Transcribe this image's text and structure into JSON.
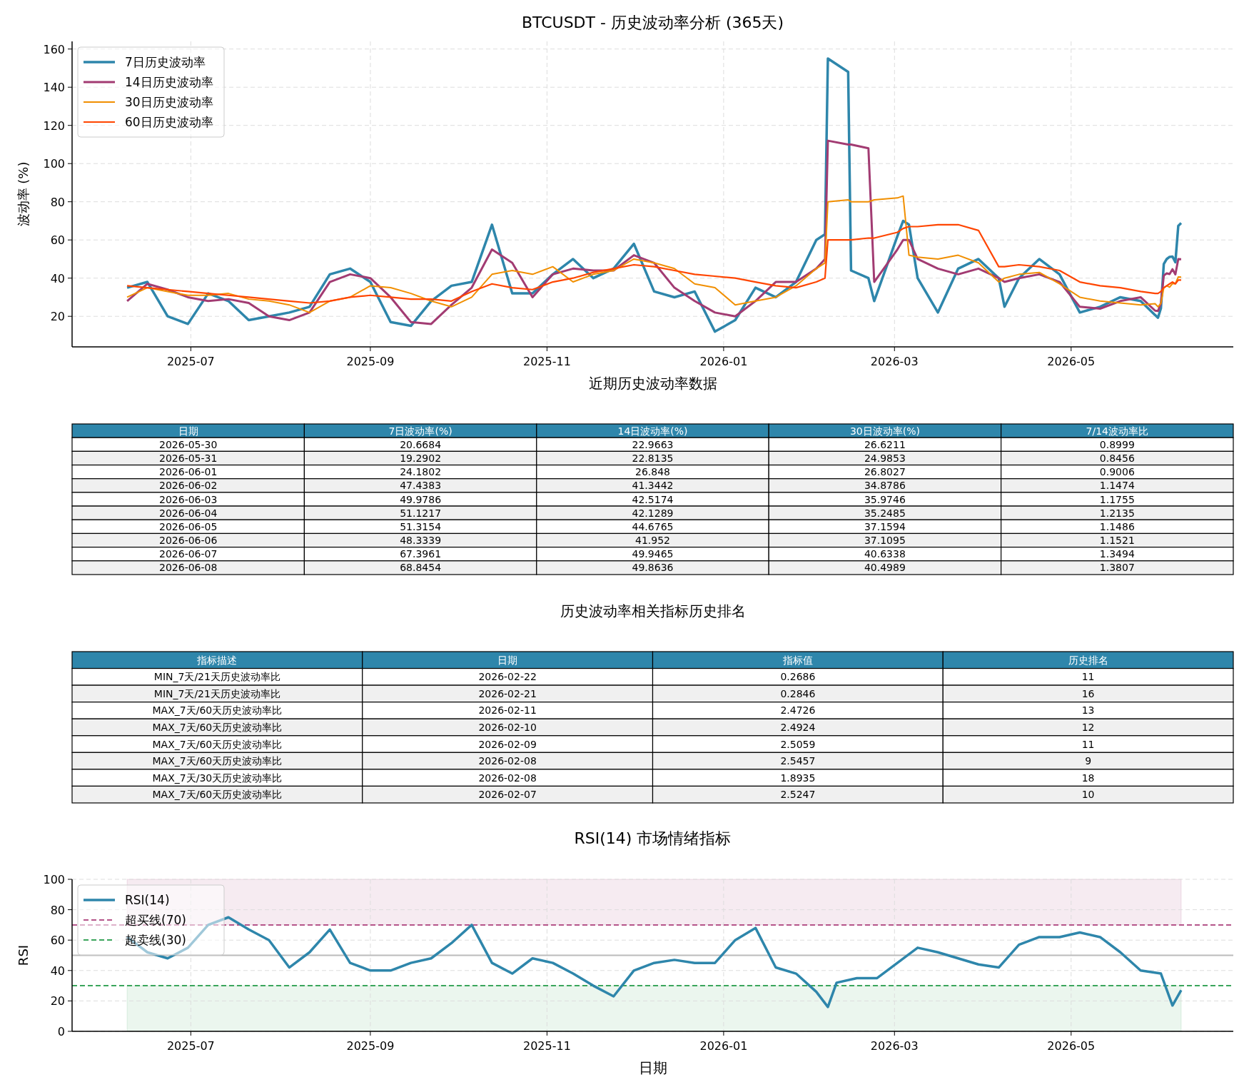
{
  "chart_data": [
    {
      "type": "line",
      "title": "BTCUSDT - 历史波动率分析 (365天)",
      "ylabel": "波动率 (%)",
      "x": [
        "2025-06-09",
        "2025-06-16",
        "2025-06-23",
        "2025-06-30",
        "2025-07-07",
        "2025-07-14",
        "2025-07-21",
        "2025-07-28",
        "2025-08-04",
        "2025-08-11",
        "2025-08-18",
        "2025-08-25",
        "2025-09-01",
        "2025-09-08",
        "2025-09-15",
        "2025-09-22",
        "2025-09-29",
        "2025-10-06",
        "2025-10-13",
        "2025-10-20",
        "2025-10-27",
        "2025-11-03",
        "2025-11-10",
        "2025-11-17",
        "2025-11-24",
        "2025-12-01",
        "2025-12-08",
        "2025-12-15",
        "2025-12-22",
        "2025-12-29",
        "2026-01-05",
        "2026-01-12",
        "2026-01-19",
        "2026-01-26",
        "2026-02-02",
        "2026-02-05",
        "2026-02-06",
        "2026-02-13",
        "2026-02-14",
        "2026-02-20",
        "2026-02-22",
        "2026-03-02",
        "2026-03-04",
        "2026-03-06",
        "2026-03-09",
        "2026-03-16",
        "2026-03-23",
        "2026-03-30",
        "2026-04-06",
        "2026-04-08",
        "2026-04-13",
        "2026-04-20",
        "2026-04-27",
        "2026-05-04",
        "2026-05-11",
        "2026-05-18",
        "2026-05-25",
        "2026-05-30",
        "2026-05-31",
        "2026-06-01",
        "2026-06-02",
        "2026-06-03",
        "2026-06-04",
        "2026-06-05",
        "2026-06-06",
        "2026-06-07",
        "2026-06-08"
      ],
      "series": [
        {
          "name": "7日历史波动率",
          "color": "#2e86ab",
          "values": [
            35,
            38,
            20,
            16,
            32,
            28,
            18,
            20,
            22,
            25,
            42,
            45,
            38,
            17,
            15,
            28,
            36,
            38,
            68,
            32,
            32,
            42,
            50,
            40,
            45,
            58,
            33,
            30,
            33,
            12,
            18,
            35,
            30,
            38,
            60,
            63,
            155,
            148,
            44,
            40,
            28,
            62,
            70,
            68,
            40,
            22,
            45,
            50,
            40,
            25,
            40,
            50,
            42,
            22,
            25,
            30,
            28,
            20.6684,
            19.2902,
            24.1802,
            47.4383,
            49.9786,
            51.1217,
            51.3154,
            48.3339,
            67.3961,
            68.8454
          ]
        },
        {
          "name": "14日历史波动率",
          "color": "#a23b72",
          "values": [
            28,
            37,
            34,
            30,
            28,
            29,
            27,
            20,
            18,
            22,
            38,
            42,
            40,
            30,
            17,
            16,
            26,
            35,
            55,
            48,
            30,
            42,
            45,
            44,
            44,
            52,
            48,
            35,
            28,
            22,
            20,
            28,
            38,
            38,
            45,
            50,
            112,
            110,
            110,
            108,
            38,
            55,
            60,
            60,
            50,
            45,
            42,
            45,
            40,
            38,
            40,
            42,
            38,
            25,
            24,
            28,
            30,
            22.9663,
            22.8135,
            26.848,
            41.3442,
            42.5174,
            42.1289,
            44.6765,
            41.952,
            49.9465,
            49.8636
          ]
        },
        {
          "name": "30日历史波动率",
          "color": "#f18f01",
          "values": [
            30,
            35,
            33,
            31,
            31,
            32,
            29,
            28,
            26,
            22,
            28,
            30,
            36,
            35,
            32,
            28,
            25,
            30,
            42,
            44,
            42,
            46,
            38,
            42,
            44,
            50,
            48,
            45,
            37,
            35,
            26,
            28,
            30,
            36,
            45,
            48,
            80,
            81,
            80,
            80,
            81,
            82,
            83,
            52,
            51,
            50,
            52,
            48,
            38,
            40,
            42,
            43,
            37,
            30,
            28,
            27,
            26,
            26.6211,
            24.9853,
            26.8027,
            34.8786,
            35.9746,
            35.2485,
            37.1594,
            37.1095,
            40.6338,
            40.4989
          ]
        },
        {
          "name": "60日历史波动率",
          "color": "#ff4500",
          "values": [
            36,
            35,
            34,
            33,
            32,
            31,
            30,
            29,
            28,
            27,
            28,
            30,
            31,
            30,
            29,
            29,
            28,
            33,
            37,
            35,
            34,
            38,
            40,
            43,
            45,
            47,
            46,
            44,
            42,
            41,
            40,
            38,
            36,
            35,
            38,
            40,
            60,
            60,
            60,
            61,
            61,
            64,
            66,
            67,
            67,
            68,
            68,
            65,
            46,
            46,
            47,
            46,
            44,
            38,
            36,
            35,
            33,
            32,
            32,
            33,
            35,
            36,
            37,
            38,
            37,
            39,
            39
          ]
        }
      ],
      "xlim": [
        "2025-05-21",
        "2026-06-26"
      ],
      "xticks": [
        {
          "value": "2025-07-01",
          "label": "2025-07"
        },
        {
          "value": "2025-09-01",
          "label": "2025-09"
        },
        {
          "value": "2025-11-01",
          "label": "2025-11"
        },
        {
          "value": "2026-01-01",
          "label": "2026-01"
        },
        {
          "value": "2026-03-01",
          "label": "2026-03"
        },
        {
          "value": "2026-05-01",
          "label": "2026-05"
        }
      ],
      "ylim": [
        4,
        164
      ],
      "yticks": [
        20,
        40,
        60,
        80,
        100,
        120,
        140,
        160
      ],
      "grid": true,
      "legend": "top left"
    },
    {
      "type": "other",
      "title": "近期历史波动率数据",
      "colors": [
        "#2e86ab",
        "#2e86ab",
        "#2e86ab",
        "#2e86ab",
        "#2e86ab"
      ],
      "categories": [
        "日期",
        "7日波动率(%)",
        "14日波动率(%)",
        "30日波动率(%)",
        "7/14波动率比"
      ],
      "cell_labels": [
        [
          "2026-05-30",
          "20.6684",
          "22.9663",
          "26.6211",
          "0.8999"
        ],
        [
          "2026-05-31",
          "19.2902",
          "22.8135",
          "24.9853",
          "0.8456"
        ],
        [
          "2026-06-01",
          "24.1802",
          "26.848",
          "26.8027",
          "0.9006"
        ],
        [
          "2026-06-02",
          "47.4383",
          "41.3442",
          "34.8786",
          "1.1474"
        ],
        [
          "2026-06-03",
          "49.9786",
          "42.5174",
          "35.9746",
          "1.1755"
        ],
        [
          "2026-06-04",
          "51.1217",
          "42.1289",
          "35.2485",
          "1.2135"
        ],
        [
          "2026-06-05",
          "51.3154",
          "44.6765",
          "37.1594",
          "1.1486"
        ],
        [
          "2026-06-06",
          "48.3339",
          "41.952",
          "37.1095",
          "1.1521"
        ],
        [
          "2026-06-07",
          "67.3961",
          "49.9465",
          "40.6338",
          "1.3494"
        ],
        [
          "2026-06-08",
          "68.8454",
          "49.8636",
          "40.4989",
          "1.3807"
        ]
      ]
    },
    {
      "type": "other",
      "title": "历史波动率相关指标历史排名",
      "colors": [
        "#2e86ab",
        "#2e86ab",
        "#2e86ab",
        "#2e86ab"
      ],
      "categories": [
        "指标描述",
        "日期",
        "指标值",
        "历史排名"
      ],
      "cell_labels": [
        [
          "MIN_7天/21天历史波动率比",
          "2026-02-22",
          "0.2686",
          "11"
        ],
        [
          "MIN_7天/21天历史波动率比",
          "2026-02-21",
          "0.2846",
          "16"
        ],
        [
          "MAX_7天/60天历史波动率比",
          "2026-02-11",
          "2.4726",
          "13"
        ],
        [
          "MAX_7天/60天历史波动率比",
          "2026-02-10",
          "2.4924",
          "12"
        ],
        [
          "MAX_7天/60天历史波动率比",
          "2026-02-09",
          "2.5059",
          "11"
        ],
        [
          "MAX_7天/60天历史波动率比",
          "2026-02-08",
          "2.5457",
          "9"
        ],
        [
          "MAX_7天/30天历史波动率比",
          "2026-02-08",
          "1.8935",
          "18"
        ],
        [
          "MAX_7天/60天历史波动率比",
          "2026-02-07",
          "2.5247",
          "10"
        ]
      ]
    },
    {
      "type": "line",
      "title": "RSI(14) 市场情绪指标",
      "xlabel": "日期",
      "ylabel": "RSI",
      "x": [
        "2025-06-09",
        "2025-06-16",
        "2025-06-23",
        "2025-06-30",
        "2025-07-07",
        "2025-07-14",
        "2025-07-21",
        "2025-07-28",
        "2025-08-04",
        "2025-08-11",
        "2025-08-18",
        "2025-08-25",
        "2025-09-01",
        "2025-09-08",
        "2025-09-15",
        "2025-09-22",
        "2025-09-29",
        "2025-10-06",
        "2025-10-13",
        "2025-10-20",
        "2025-10-27",
        "2025-11-03",
        "2025-11-10",
        "2025-11-17",
        "2025-11-24",
        "2025-12-01",
        "2025-12-08",
        "2025-12-15",
        "2025-12-22",
        "2025-12-29",
        "2026-01-05",
        "2026-01-12",
        "2026-01-19",
        "2026-01-26",
        "2026-02-02",
        "2026-02-06",
        "2026-02-09",
        "2026-02-16",
        "2026-02-23",
        "2026-03-02",
        "2026-03-09",
        "2026-03-16",
        "2026-03-23",
        "2026-03-30",
        "2026-04-06",
        "2026-04-13",
        "2026-04-20",
        "2026-04-27",
        "2026-05-04",
        "2026-05-11",
        "2026-05-18",
        "2026-05-25",
        "2026-06-01",
        "2026-06-05",
        "2026-06-08"
      ],
      "series": [
        {
          "name": "RSI(14)",
          "color": "#2e86ab",
          "values": [
            62,
            52,
            48,
            55,
            70,
            75,
            67,
            60,
            42,
            52,
            67,
            45,
            40,
            40,
            45,
            48,
            58,
            70,
            45,
            38,
            48,
            45,
            38,
            30,
            23,
            40,
            45,
            47,
            45,
            45,
            60,
            68,
            42,
            38,
            26,
            16,
            32,
            35,
            35,
            45,
            55,
            52,
            48,
            44,
            42,
            57,
            62,
            62,
            65,
            62,
            52,
            40,
            38,
            17,
            27
          ]
        }
      ],
      "xlim": [
        "2025-05-21",
        "2026-06-26"
      ],
      "xticks": [
        {
          "value": "2025-07-01",
          "label": "2025-07"
        },
        {
          "value": "2025-09-01",
          "label": "2025-09"
        },
        {
          "value": "2025-11-01",
          "label": "2025-11"
        },
        {
          "value": "2026-01-01",
          "label": "2026-01"
        },
        {
          "value": "2026-03-01",
          "label": "2026-03"
        },
        {
          "value": "2026-05-01",
          "label": "2026-05"
        }
      ],
      "ylim": [
        0,
        100
      ],
      "yticks": [
        0,
        20,
        40,
        60,
        80,
        100
      ],
      "grid": true,
      "legend": "top left",
      "ref_lines": [
        {
          "axis": "y",
          "value": 70,
          "label": "超买线(70)",
          "color": "#b5558a",
          "line_style": "dashed"
        },
        {
          "axis": "y",
          "value": 30,
          "label": "超卖线(30)",
          "color": "#3ba55c",
          "line_style": "dashed"
        },
        {
          "axis": "y",
          "value": 50,
          "color": "#bbbbbb",
          "line_style": "solid"
        }
      ],
      "bands": [
        {
          "axis": "y",
          "from": 70,
          "to": 100,
          "color": "#a23b72"
        },
        {
          "axis": "y",
          "from": 0,
          "to": 30,
          "color": "#3ba55c"
        }
      ]
    }
  ]
}
